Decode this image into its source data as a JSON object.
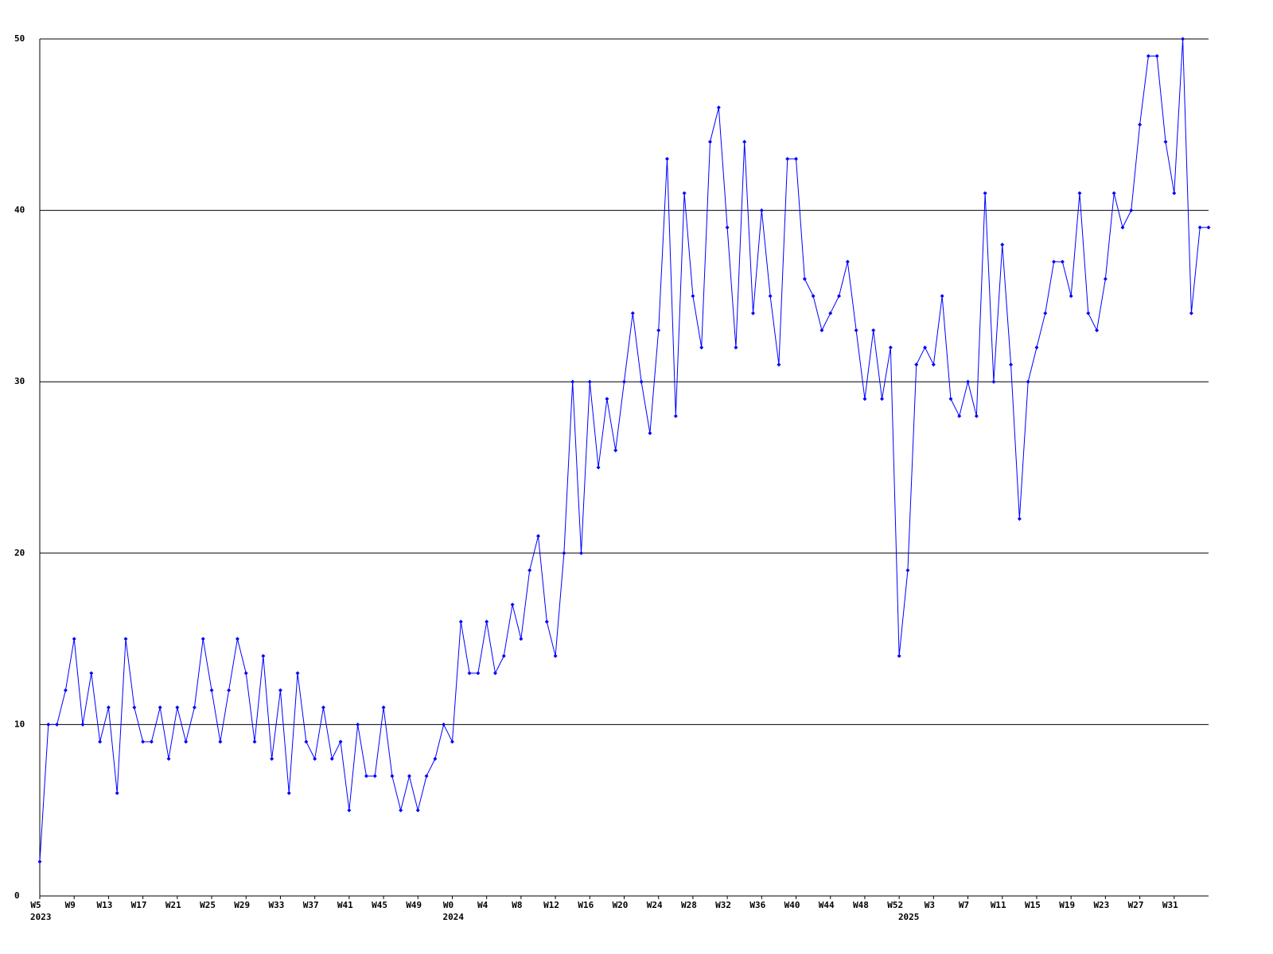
{
  "chart_data": {
    "type": "line",
    "color": "#0000ff",
    "grid_color": "#000000",
    "categories": [
      "W5",
      null,
      null,
      null,
      "W9",
      null,
      null,
      null,
      "W13",
      null,
      null,
      null,
      "W17",
      null,
      null,
      null,
      "W21",
      null,
      null,
      null,
      "W25",
      null,
      null,
      null,
      "W29",
      null,
      null,
      null,
      "W33",
      null,
      null,
      null,
      "W37",
      null,
      null,
      null,
      "W41",
      null,
      null,
      null,
      "W45",
      null,
      null,
      null,
      "W49",
      null,
      null,
      null,
      "W0",
      null,
      null,
      null,
      "W4",
      null,
      null,
      null,
      "W8",
      null,
      null,
      null,
      "W12",
      null,
      null,
      null,
      "W16",
      null,
      null,
      null,
      "W20",
      null,
      null,
      null,
      "W24",
      null,
      null,
      null,
      "W28",
      null,
      null,
      null,
      "W32",
      null,
      null,
      null,
      "W36",
      null,
      null,
      null,
      "W40",
      null,
      null,
      null,
      "W44",
      null,
      null,
      null,
      "W48",
      null,
      null,
      null,
      "W52",
      null,
      null,
      null,
      "W3",
      null,
      null,
      null,
      "W7",
      null,
      null,
      null,
      "W11",
      null,
      null,
      null,
      "W15",
      null,
      null,
      null,
      "W19",
      null,
      null,
      null,
      "W23",
      null,
      null,
      null,
      "W27",
      null,
      null,
      null,
      "W31",
      null,
      null,
      null,
      null
    ],
    "years": [
      "2023",
      null,
      null,
      null,
      null,
      null,
      null,
      null,
      null,
      null,
      null,
      null,
      null,
      null,
      null,
      null,
      null,
      null,
      null,
      null,
      null,
      null,
      null,
      null,
      null,
      null,
      null,
      null,
      null,
      null,
      null,
      null,
      null,
      null,
      null,
      null,
      null,
      null,
      null,
      null,
      null,
      null,
      null,
      null,
      null,
      null,
      null,
      null,
      "2024",
      null,
      null,
      null,
      null,
      null,
      null,
      null,
      null,
      null,
      null,
      null,
      null,
      null,
      null,
      null,
      null,
      null,
      null,
      null,
      null,
      null,
      null,
      null,
      null,
      null,
      null,
      null,
      null,
      null,
      null,
      null,
      null,
      null,
      null,
      null,
      null,
      null,
      null,
      null,
      null,
      null,
      null,
      null,
      null,
      null,
      null,
      null,
      null,
      null,
      null,
      null,
      null,
      "2025",
      null,
      null,
      null,
      null,
      null,
      null,
      null,
      null,
      null,
      null,
      null,
      null,
      null,
      null,
      null,
      null,
      null,
      null,
      null,
      null,
      null,
      null,
      null,
      null,
      null,
      null,
      null,
      null,
      null,
      null,
      null,
      null,
      null,
      null,
      null
    ],
    "values": [
      2,
      10,
      10,
      12,
      15,
      10,
      13,
      9,
      11,
      6,
      15,
      11,
      9,
      9,
      11,
      8,
      11,
      9,
      11,
      15,
      12,
      9,
      12,
      15,
      13,
      9,
      14,
      8,
      12,
      6,
      13,
      9,
      8,
      11,
      8,
      9,
      5,
      10,
      7,
      7,
      11,
      7,
      5,
      7,
      5,
      7,
      8,
      10,
      9,
      16,
      13,
      13,
      16,
      13,
      14,
      17,
      15,
      19,
      21,
      16,
      14,
      20,
      30,
      20,
      30,
      25,
      29,
      26,
      30,
      34,
      30,
      27,
      33,
      43,
      28,
      41,
      35,
      32,
      44,
      46,
      39,
      32,
      44,
      34,
      40,
      35,
      31,
      43,
      43,
      36,
      35,
      33,
      34,
      35,
      37,
      33,
      29,
      33,
      29,
      32,
      14,
      19,
      31,
      32,
      31,
      35,
      29,
      28,
      30,
      28,
      41,
      30,
      38,
      31,
      22,
      30,
      32,
      34,
      37,
      37,
      35,
      41,
      34,
      33,
      36,
      41,
      39,
      40,
      45,
      49,
      49,
      44,
      41,
      50,
      34,
      39,
      39
    ],
    "ylim": [
      0,
      50
    ],
    "yticks": [
      0,
      10,
      20,
      30,
      40,
      50
    ],
    "grid": true
  }
}
